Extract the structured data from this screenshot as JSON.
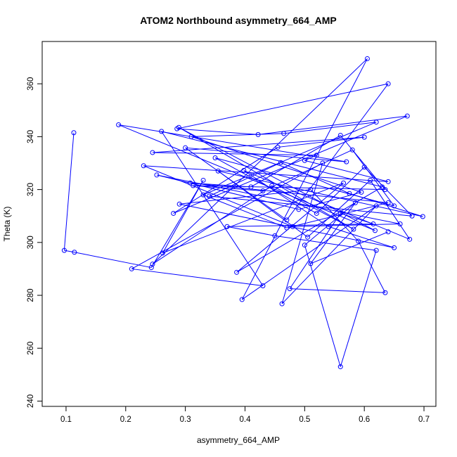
{
  "chart_data": {
    "type": "line",
    "title": "ATOM2 Northbound asymmetry_664_AMP",
    "xlabel": "asymmetry_664_AMP",
    "ylabel": "Theta (K)",
    "xlim": [
      0.06,
      0.72
    ],
    "ylim": [
      238,
      376
    ],
    "xticks": [
      0.1,
      0.2,
      0.3,
      0.4,
      0.5,
      0.6,
      0.7
    ],
    "yticks": [
      240,
      260,
      280,
      300,
      320,
      340,
      360
    ],
    "xtick_labels": [
      "0.1",
      "0.2",
      "0.3",
      "0.4",
      "0.5",
      "0.6",
      "0.7"
    ],
    "ytick_labels": [
      "240",
      "260",
      "280",
      "300",
      "320",
      "340",
      "360"
    ],
    "grid": false,
    "series_color": "#0000ff",
    "marker": "open-circle",
    "series": [
      {
        "x": [
          0.113,
          0.097,
          0.114,
          0.243,
          0.33,
          0.262,
          0.565,
          0.386,
          0.63,
          0.26,
          0.43,
          0.21,
          0.53,
          0.462,
          0.62,
          0.395,
          0.605,
          0.245,
          0.445,
          0.582,
          0.289,
          0.618,
          0.188,
          0.57,
          0.3,
          0.47,
          0.64,
          0.286,
          0.422,
          0.672,
          0.28,
          0.455,
          0.6,
          0.245,
          0.52,
          0.5,
          0.64,
          0.23,
          0.48,
          0.66,
          0.252,
          0.49,
          0.595,
          0.31,
          0.465,
          0.62,
          0.33,
          0.47,
          0.64,
          0.308,
          0.41,
          0.56,
          0.635,
          0.313,
          0.43,
          0.58,
          0.65,
          0.35,
          0.52,
          0.6,
          0.68,
          0.34,
          0.46,
          0.575,
          0.698,
          0.355,
          0.505,
          0.61,
          0.676,
          0.398,
          0.54,
          0.65,
          0.29,
          0.51,
          0.59,
          0.635,
          0.475,
          0.56,
          0.615,
          0.37,
          0.45,
          0.62,
          0.56,
          0.5,
          0.585,
          0.51,
          0.64
        ],
        "y": [
          341.5,
          297.0,
          296.3,
          290.5,
          323.5,
          296.0,
          322.5,
          288.7,
          321.0,
          342.0,
          283.6,
          290.0,
          330.0,
          276.8,
          313.8,
          278.4,
          369.5,
          291.8,
          321.5,
          305.0,
          343.5,
          304.5,
          344.5,
          330.5,
          335.8,
          308.5,
          360.0,
          343.0,
          340.8,
          347.8,
          311.0,
          336.0,
          339.8,
          334.0,
          333.0,
          331.0,
          323.0,
          329.0,
          306.0,
          307.0,
          325.5,
          312.5,
          319.0,
          340.0,
          341.2,
          345.5,
          318.0,
          305.5,
          315.0,
          322.5,
          321.0,
          340.5,
          320.0,
          321.5,
          319.5,
          335.0,
          313.8,
          332.0,
          311.0,
          328.5,
          310.0,
          317.5,
          330.2,
          318.5,
          309.8,
          327.0,
          302.0,
          323.5,
          301.2,
          327.2,
          306.0,
          298.0,
          314.5,
          320.0,
          300.5,
          281.0,
          282.5,
          311.0,
          307.0,
          306.0,
          302.5,
          297.0,
          253.0,
          299.0,
          315.0,
          292.0,
          304.0
        ]
      }
    ]
  }
}
